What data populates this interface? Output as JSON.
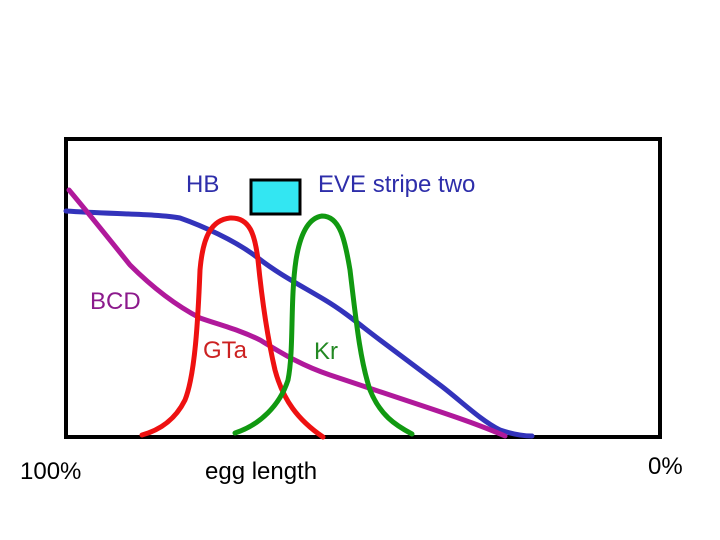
{
  "labels": {
    "hb": "HB",
    "eve": "EVE stripe two",
    "bcd": "BCD",
    "gta": "GTa",
    "kr": "Kr",
    "x_left": "100%",
    "x_axis": "egg length",
    "x_right": "0%"
  },
  "colors": {
    "frame": "#000000",
    "hb": "#3333bb",
    "bcd": "#b0199b",
    "gta": "#ee1111",
    "kr": "#119911",
    "eve_box": "#33e6f2",
    "hb_text": "#2e2eaa",
    "bcd_text": "#8c1a8c",
    "gta_text": "#cc2222",
    "kr_text": "#228822"
  }
}
